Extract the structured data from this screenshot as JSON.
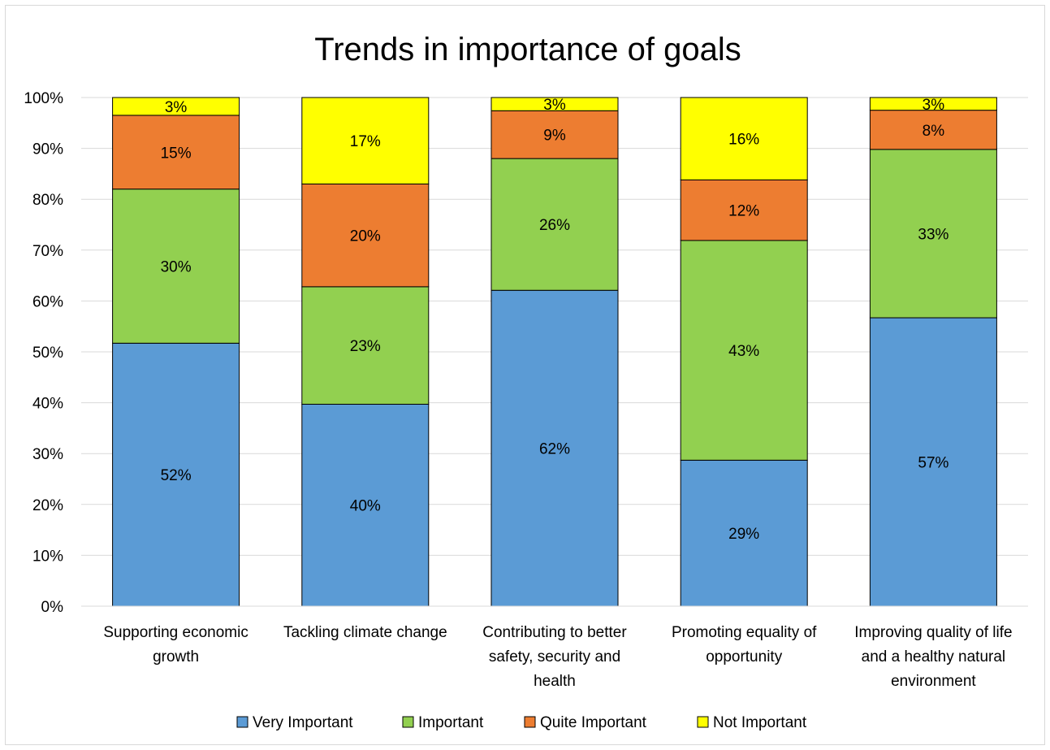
{
  "chart_data": {
    "type": "bar",
    "stacked": true,
    "title": "Trends in importance of goals",
    "categories": [
      [
        "Supporting economic",
        "growth"
      ],
      [
        "Tackling climate change"
      ],
      [
        "Contributing to better",
        "safety, security and",
        "health"
      ],
      [
        "Promoting equality of",
        "opportunity"
      ],
      [
        "Improving quality of life",
        "and a healthy natural",
        "environment"
      ]
    ],
    "series": [
      {
        "name": "Very Important",
        "color": "#5b9bd5",
        "values": [
          0.517,
          0.397,
          0.621,
          0.287,
          0.567
        ],
        "labels": [
          "52%",
          "40%",
          "62%",
          "29%",
          "57%"
        ]
      },
      {
        "name": "Important",
        "color": "#92d050",
        "values": [
          0.303,
          0.231,
          0.259,
          0.432,
          0.331
        ],
        "labels": [
          "30%",
          "23%",
          "26%",
          "43%",
          "33%"
        ]
      },
      {
        "name": "Quite Important",
        "color": "#ed7d31",
        "values": [
          0.145,
          0.202,
          0.094,
          0.119,
          0.077
        ],
        "labels": [
          "15%",
          "20%",
          "9%",
          "12%",
          "8%"
        ]
      },
      {
        "name": "Not Important",
        "color": "#ffff00",
        "values": [
          0.035,
          0.17,
          0.026,
          0.162,
          0.025
        ],
        "labels": [
          "3%",
          "17%",
          "3%",
          "16%",
          "3%"
        ]
      }
    ],
    "y_ticks": [
      "0%",
      "10%",
      "20%",
      "30%",
      "40%",
      "50%",
      "60%",
      "70%",
      "80%",
      "90%",
      "100%"
    ],
    "ylim": [
      0,
      1
    ],
    "grid": true,
    "legend_position": "bottom"
  }
}
